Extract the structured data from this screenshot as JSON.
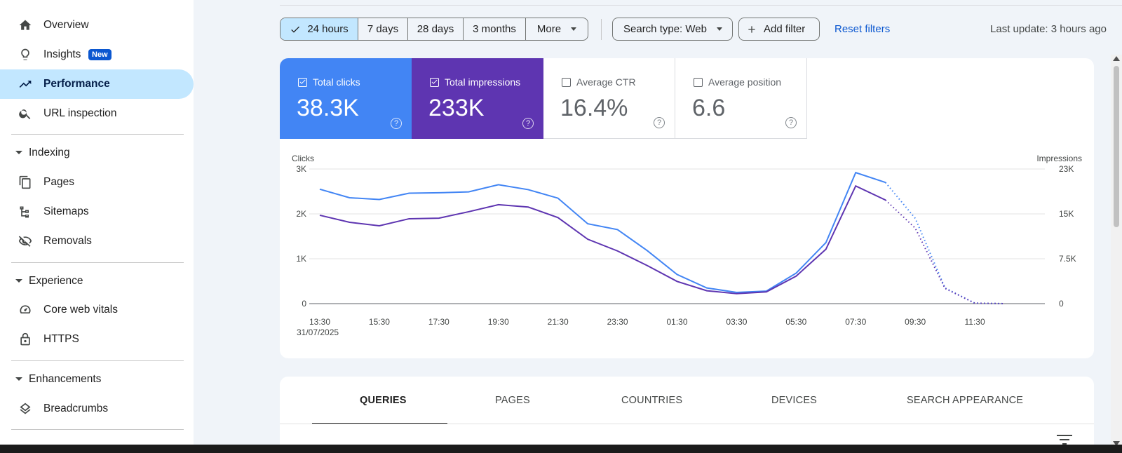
{
  "sidebar": {
    "items": [
      {
        "label": "Overview",
        "icon": "home-icon"
      },
      {
        "label": "Insights",
        "icon": "lightbulb-icon",
        "badge": "New"
      },
      {
        "label": "Performance",
        "icon": "trending-up-icon",
        "active": true
      },
      {
        "label": "URL inspection",
        "icon": "search-icon"
      }
    ],
    "sections": [
      {
        "label": "Indexing",
        "items": [
          {
            "label": "Pages",
            "icon": "pages-icon"
          },
          {
            "label": "Sitemaps",
            "icon": "sitemap-icon"
          },
          {
            "label": "Removals",
            "icon": "eye-off-icon"
          }
        ]
      },
      {
        "label": "Experience",
        "items": [
          {
            "label": "Core web vitals",
            "icon": "speedometer-icon"
          },
          {
            "label": "HTTPS",
            "icon": "lock-icon"
          }
        ]
      },
      {
        "label": "Enhancements",
        "items": [
          {
            "label": "Breadcrumbs",
            "icon": "layers-icon"
          }
        ]
      }
    ]
  },
  "toolbar": {
    "ranges": [
      "24 hours",
      "7 days",
      "28 days",
      "3 months",
      "More"
    ],
    "selected_range": "24 hours",
    "search_type": "Search type: Web",
    "add_filter": "Add filter",
    "reset": "Reset filters",
    "last_update": "Last update: 3 hours ago"
  },
  "metrics": {
    "clicks": {
      "label": "Total clicks",
      "value": "38.3K",
      "checked": true,
      "color": "#4285f4"
    },
    "impressions": {
      "label": "Total impressions",
      "value": "233K",
      "checked": true,
      "color": "#5e35b1"
    },
    "ctr": {
      "label": "Average CTR",
      "value": "16.4%",
      "checked": false
    },
    "position": {
      "label": "Average position",
      "value": "6.6",
      "checked": false
    }
  },
  "chart_data": {
    "type": "line",
    "ylabel_left": "Clicks",
    "ylabel_right": "Impressions",
    "y_ticks_left": [
      "0",
      "1K",
      "2K",
      "3K"
    ],
    "y_ticks_right": [
      "0",
      "7.5K",
      "15K",
      "23K"
    ],
    "ylim_left": [
      0,
      3000
    ],
    "ylim_right": [
      0,
      23000
    ],
    "x_tick_labels": [
      "13:30",
      "15:30",
      "17:30",
      "19:30",
      "21:30",
      "23:30",
      "01:30",
      "03:30",
      "05:30",
      "07:30",
      "09:30",
      "11:30"
    ],
    "x_date_label": "31/07/2025",
    "x_hours": [
      13.5,
      14.5,
      15.5,
      16.5,
      17.5,
      18.5,
      19.5,
      20.5,
      21.5,
      22.5,
      23.5,
      24.5,
      25.5,
      26.5,
      27.5,
      28.5,
      29.5,
      30.5,
      31.5,
      32.5,
      33.5,
      34.5,
      35.5,
      36.5
    ],
    "series": [
      {
        "name": "Clicks",
        "axis": "left",
        "color": "#4285f4",
        "values": [
          2550,
          2360,
          2320,
          2460,
          2470,
          2490,
          2650,
          2540,
          2350,
          1780,
          1650,
          1180,
          650,
          350,
          250,
          280,
          680,
          1360,
          2920,
          2700,
          1900,
          350,
          10,
          0
        ],
        "partial_from_index": 19
      },
      {
        "name": "Impressions",
        "axis": "right",
        "color": "#5e35b1",
        "values": [
          15100,
          13900,
          13300,
          14500,
          14600,
          15700,
          16900,
          16500,
          14700,
          11000,
          9000,
          6500,
          3800,
          2200,
          1700,
          2000,
          4700,
          9300,
          20100,
          17700,
          12900,
          2600,
          80,
          0
        ],
        "partial_from_index": 19
      }
    ]
  },
  "tabs": [
    "QUERIES",
    "PAGES",
    "COUNTRIES",
    "DEVICES",
    "SEARCH APPEARANCE"
  ],
  "selected_tab": "QUERIES"
}
